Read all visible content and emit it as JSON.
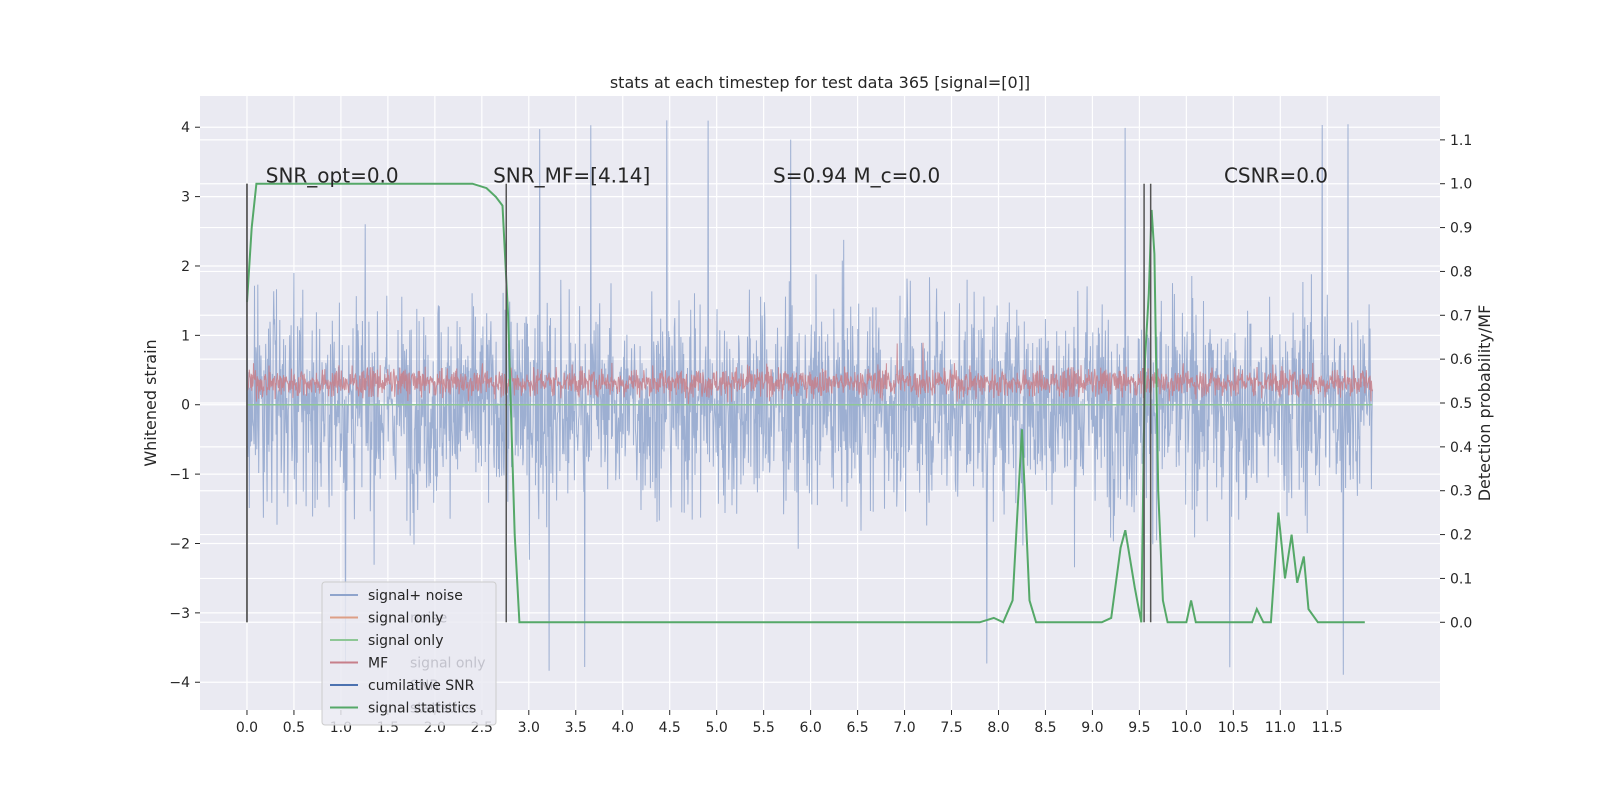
{
  "chart_data": {
    "type": "line",
    "title": "stats at each timestep for test data 365 [signal=[0]]",
    "ylabel": "Whitened strain",
    "y2label": "Detection probability/MF",
    "xlim": [
      -0.5,
      12.7
    ],
    "ylim": [
      -4.4,
      4.45
    ],
    "y2lim": [
      -0.2,
      1.2
    ],
    "xticks": [
      0.0,
      0.5,
      1.0,
      1.5,
      2.0,
      2.5,
      3.0,
      3.5,
      4.0,
      4.5,
      5.0,
      5.5,
      6.0,
      6.5,
      7.0,
      7.5,
      8.0,
      8.5,
      9.0,
      9.5,
      10.0,
      10.5,
      11.0,
      11.5
    ],
    "xtick_labels": [
      "0.0",
      "0.5",
      "1.0",
      "1.5",
      "2.0",
      "2.5",
      "3.0",
      "3.5",
      "4.0",
      "4.5",
      "5.0",
      "5.5",
      "6.0",
      "6.5",
      "7.0",
      "7.5",
      "8.0",
      "8.5",
      "9.0",
      "9.5",
      "10.0",
      "10.5",
      "11.0",
      "11.5"
    ],
    "yticks": [
      -4,
      -3,
      -2,
      -1,
      0,
      1,
      2,
      3,
      4
    ],
    "ytick_labels": [
      "−4",
      "−3",
      "−2",
      "−1",
      "0",
      "1",
      "2",
      "3",
      "4"
    ],
    "y2ticks": [
      0.0,
      0.1,
      0.2,
      0.3,
      0.4,
      0.5,
      0.6,
      0.7,
      0.8,
      0.9,
      1.0,
      1.1
    ],
    "y2tick_labels": [
      "0.0",
      "0.1",
      "0.2",
      "0.3",
      "0.4",
      "0.5",
      "0.6",
      "0.7",
      "0.8",
      "0.9",
      "1.0",
      "1.1"
    ],
    "grid": true,
    "legend_placement": "lower-left",
    "legend": [
      {
        "label": "signal+ noise",
        "color": "#8fa4cc"
      },
      {
        "label": "signal only",
        "color": "#dd9f86"
      },
      {
        "label": "signal only",
        "color": "#8ec796"
      },
      {
        "label": "MF",
        "color": "#c77f8a"
      },
      {
        "label": "cumilative SNR",
        "color": "#4c72b0"
      },
      {
        "label": "signal statistics",
        "color": "#55a868"
      }
    ],
    "legend_ghost": [
      {
        "label": "noise",
        "row": 1
      },
      {
        "label": "signal only",
        "row": 3
      },
      {
        "label": "SNR",
        "row": 4
      },
      {
        "label": "statistics",
        "row": 5
      }
    ],
    "annotations": [
      {
        "text": "SNR_opt=0.0",
        "x": 0.2,
        "y2": 1.0
      },
      {
        "text": "SNR_MF=[4.14]",
        "x": 2.62,
        "y2": 1.0
      },
      {
        "text": "S=0.94   M_c=0.0",
        "x": 5.6,
        "y2": 1.0
      },
      {
        "text": "CSNR=0.0",
        "x": 10.4,
        "y2": 1.0
      }
    ],
    "vlines": [
      {
        "x": 0.0,
        "y2": [
          0.0,
          1.0
        ]
      },
      {
        "x": 2.76,
        "y2": [
          0.0,
          1.0
        ]
      },
      {
        "x": 9.55,
        "y2": [
          0.0,
          1.0
        ]
      },
      {
        "x": 9.62,
        "y2": [
          0.0,
          1.0
        ]
      }
    ],
    "series": [
      {
        "name": "signal+ noise",
        "axis": "left",
        "kind": "noise-band",
        "x_range": [
          0.0,
          11.98
        ],
        "typical_range": [
          -1.9,
          1.9
        ],
        "extreme_range": [
          -4.0,
          4.1
        ],
        "color": "#8fa4cc"
      },
      {
        "name": "MF",
        "axis": "left",
        "kind": "noise-band",
        "x_range": [
          0.0,
          11.98
        ],
        "typical_range": [
          0.05,
          0.6
        ],
        "extreme_range": [
          0.0,
          0.95
        ],
        "color": "#c77f8a"
      },
      {
        "name": "signal only",
        "axis": "left",
        "kind": "line",
        "x": [
          0.0,
          11.98
        ],
        "y": [
          0.0,
          0.0
        ],
        "color": "#8ec796"
      },
      {
        "name": "signal statistics",
        "axis": "right",
        "kind": "line",
        "color": "#55a868",
        "x": [
          0.0,
          0.05,
          0.1,
          0.3,
          0.5,
          1.0,
          1.5,
          2.0,
          2.4,
          2.55,
          2.65,
          2.72,
          2.78,
          2.85,
          2.9,
          3.0,
          3.1,
          3.3,
          3.5,
          4.0,
          4.2,
          6.0,
          7.5,
          7.8,
          7.95,
          8.05,
          8.15,
          8.25,
          8.33,
          8.4,
          8.5,
          9.0,
          9.1,
          9.2,
          9.3,
          9.35,
          9.45,
          9.52,
          9.56,
          9.6,
          9.63,
          9.66,
          9.7,
          9.75,
          9.8,
          9.9,
          10.0,
          10.05,
          10.1,
          10.2,
          10.5,
          10.7,
          10.75,
          10.82,
          10.9,
          10.98,
          11.05,
          11.12,
          11.18,
          11.25,
          11.3,
          11.4,
          11.5,
          11.7,
          11.9
        ],
        "y": [
          0.73,
          0.9,
          1.0,
          1.0,
          1.0,
          1.0,
          1.0,
          1.0,
          1.0,
          0.99,
          0.97,
          0.95,
          0.7,
          0.2,
          0.0,
          0.0,
          0.0,
          0.0,
          0.0,
          0.0,
          0.0,
          0.0,
          0.0,
          0.0,
          0.01,
          0.0,
          0.05,
          0.44,
          0.05,
          0.0,
          0.0,
          0.0,
          0.0,
          0.01,
          0.17,
          0.21,
          0.08,
          0.0,
          0.6,
          0.75,
          0.94,
          0.84,
          0.3,
          0.05,
          0.0,
          0.0,
          0.0,
          0.05,
          0.0,
          0.0,
          0.0,
          0.0,
          0.03,
          0.0,
          0.0,
          0.25,
          0.1,
          0.2,
          0.09,
          0.15,
          0.03,
          0.0,
          0.0,
          0.0,
          0.0
        ]
      }
    ]
  }
}
